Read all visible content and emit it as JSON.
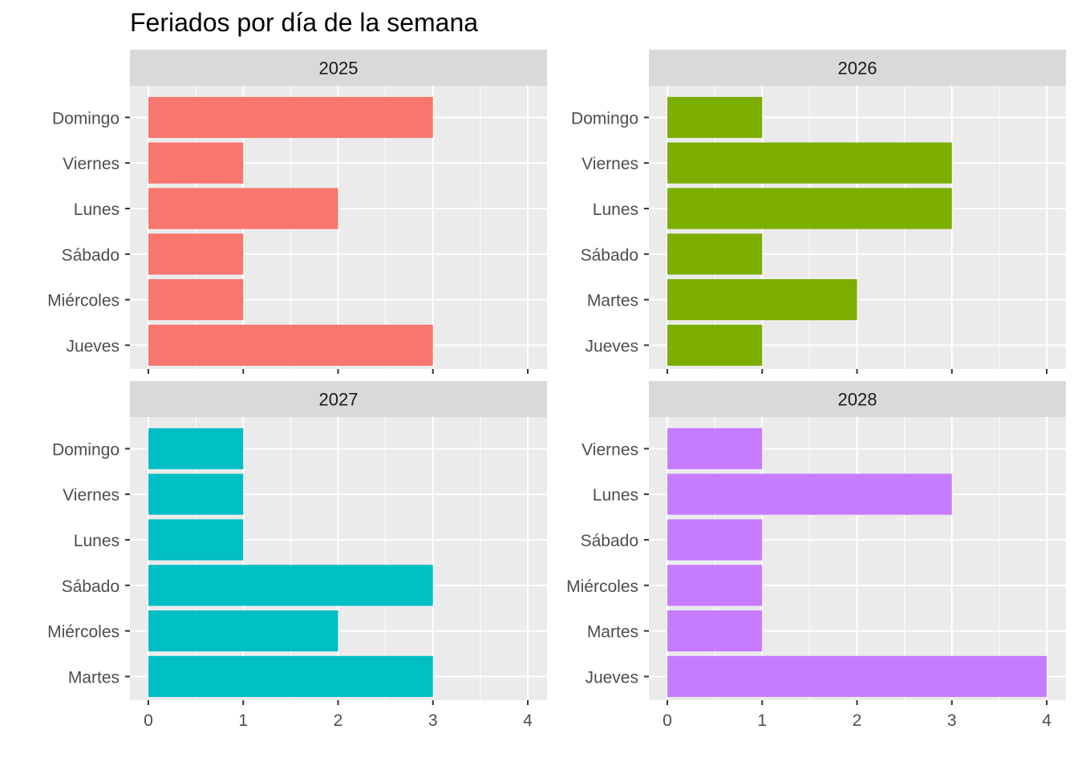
{
  "chart_data": {
    "type": "bar",
    "orientation": "horizontal",
    "title": "Feriados por día de la semana",
    "xlabel": "",
    "ylabel": "",
    "xlim": [
      0,
      4
    ],
    "x_ticks": [
      "0",
      "1",
      "2",
      "3",
      "4"
    ],
    "grid": true,
    "legend": "none",
    "facets": [
      {
        "label": "2025",
        "color": "#F8766D",
        "categories": [
          "Domingo",
          "Viernes",
          "Lunes",
          "Sábado",
          "Miércoles",
          "Jueves"
        ],
        "values": [
          3,
          1,
          2,
          1,
          1,
          3
        ]
      },
      {
        "label": "2026",
        "color": "#7CAE00",
        "categories": [
          "Domingo",
          "Viernes",
          "Lunes",
          "Sábado",
          "Martes",
          "Jueves"
        ],
        "values": [
          1,
          3,
          3,
          1,
          2,
          1
        ]
      },
      {
        "label": "2027",
        "color": "#00BFC4",
        "categories": [
          "Domingo",
          "Viernes",
          "Lunes",
          "Sábado",
          "Miércoles",
          "Martes"
        ],
        "values": [
          1,
          1,
          1,
          3,
          2,
          3
        ]
      },
      {
        "label": "2028",
        "color": "#C77CFF",
        "categories": [
          "Viernes",
          "Lunes",
          "Sábado",
          "Miércoles",
          "Martes",
          "Jueves"
        ],
        "values": [
          1,
          3,
          1,
          1,
          1,
          4
        ]
      }
    ]
  }
}
